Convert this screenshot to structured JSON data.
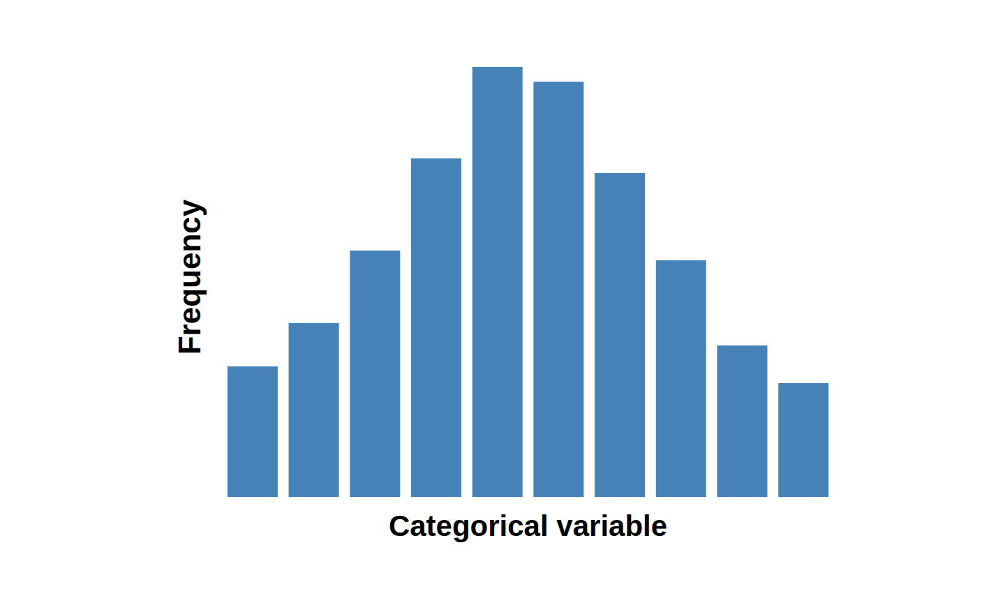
{
  "chart_data": {
    "type": "bar",
    "x_label": "Categorical variable",
    "y_label": "Frequency",
    "categories": [
      null,
      null,
      null,
      null,
      null,
      null,
      null,
      null,
      null,
      null
    ],
    "values": [
      18.7,
      24.9,
      35.3,
      48.5,
      61.6,
      59.5,
      46.4,
      33.9,
      21.7,
      16.3
    ],
    "color": "#4682b8",
    "ylim": [
      0,
      63
    ],
    "grid": false,
    "tick_labels": false
  }
}
